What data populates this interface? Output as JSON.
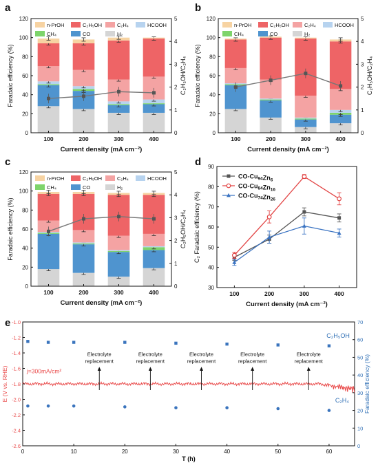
{
  "panel_labels": [
    "a",
    "b",
    "c",
    "d",
    "e"
  ],
  "colors": {
    "n-PrOH": "#f7d3a2",
    "C2H5OH": "#ee6466",
    "C2H4": "#f4a3a3",
    "HCOOH": "#b7d3ef",
    "CH4": "#7ed46b",
    "CO": "#4f94cf",
    "H2": "#d5d5d5",
    "ratio_line": "#777777",
    "axis": "#111111",
    "cu94": "#555555",
    "cu84": "#e24444",
    "cu74": "#3a73c2",
    "potential": "#e94b4b",
    "fe_points": "#3a74bd",
    "right_axis_e": "#2f6fb5"
  },
  "chart_data": [
    {
      "panel": "a",
      "type": "bar",
      "stacked": true,
      "categories": [
        "100",
        "200",
        "300",
        "400"
      ],
      "xlabel": "Current density (mA cm⁻²)",
      "ylabel": "Faradaic efficiency (%)",
      "ylim": [
        0,
        120
      ],
      "yticks": [
        "0",
        "20",
        "40",
        "60",
        "80",
        "100",
        "120"
      ],
      "y2label": "C₂H₅OH/C₂H₄",
      "y2lim": [
        0,
        5
      ],
      "y2ticks": [
        "0",
        "1",
        "2",
        "3",
        "4",
        "5"
      ],
      "legend": [
        "n-PrOH",
        "C₂H₅OH",
        "C₂H₄",
        "HCOOH",
        "CH₄",
        "CO",
        "H₂"
      ],
      "series": [
        {
          "key": "H2",
          "name": "H₂",
          "values": [
            28,
            25,
            21,
            21
          ]
        },
        {
          "key": "CO",
          "name": "CO",
          "values": [
            22,
            19,
            8,
            9
          ]
        },
        {
          "key": "CH4",
          "name": "CH₄",
          "values": [
            1,
            2,
            1,
            1
          ]
        },
        {
          "key": "HCOOH",
          "name": "HCOOH",
          "values": [
            3,
            3,
            3,
            4
          ]
        },
        {
          "key": "C2H4",
          "name": "C₂H₄",
          "values": [
            16,
            17,
            23,
            24
          ]
        },
        {
          "key": "C2H5OH",
          "name": "C₂H₅OH",
          "values": [
            24,
            28,
            41,
            40
          ]
        },
        {
          "key": "n-PrOH",
          "name": "n-PrOH",
          "values": [
            5,
            4,
            3,
            1
          ]
        }
      ],
      "ratio": [
        1.5,
        1.6,
        1.8,
        1.75
      ]
    },
    {
      "panel": "b",
      "type": "bar",
      "stacked": true,
      "categories": [
        "100",
        "200",
        "300",
        "400"
      ],
      "xlabel": "Current density (mA cm⁻²)",
      "ylabel": "Faradaic efficiency (%)",
      "ylim": [
        0,
        120
      ],
      "yticks": [
        "0",
        "20",
        "40",
        "60",
        "80",
        "100",
        "120"
      ],
      "y2label": "C₂H₅OH/C₂H₄",
      "y2lim": [
        0,
        5
      ],
      "y2ticks": [
        "0",
        "1",
        "2",
        "3",
        "4",
        "5"
      ],
      "legend": [
        "n-PrOH",
        "C₂H₅OH",
        "C₂H₄",
        "HCOOH",
        "CH₄",
        "CO",
        "H₂"
      ],
      "series": [
        {
          "key": "H2",
          "name": "H₂",
          "values": [
            25,
            16,
            6,
            10
          ]
        },
        {
          "key": "CO",
          "name": "CO",
          "values": [
            25,
            18,
            8,
            9
          ]
        },
        {
          "key": "CH4",
          "name": "CH₄",
          "values": [
            1,
            1,
            1,
            2
          ]
        },
        {
          "key": "HCOOH",
          "name": "HCOOH",
          "values": [
            1,
            1,
            1,
            3
          ]
        },
        {
          "key": "C2H4",
          "name": "C₂H₄",
          "values": [
            16,
            20,
            23,
            22
          ]
        },
        {
          "key": "C2H5OH",
          "name": "C₂H₅OH",
          "values": [
            30,
            44,
            60,
            50
          ]
        },
        {
          "key": "n-PrOH",
          "name": "n-PrOH",
          "values": [
            1,
            1,
            1,
            2
          ]
        }
      ],
      "ratio": [
        2.0,
        2.3,
        2.6,
        2.05
      ]
    },
    {
      "panel": "c",
      "type": "bar",
      "stacked": true,
      "categories": [
        "100",
        "200",
        "300",
        "400"
      ],
      "xlabel": "Current density (mA cm⁻²)",
      "ylabel": "Faradaic efficiency (%)",
      "ylim": [
        0,
        120
      ],
      "yticks": [
        "0",
        "20",
        "40",
        "60",
        "80",
        "100",
        "120"
      ],
      "y2label": "C₂H₅OH/C₂H₄",
      "y2lim": [
        0,
        5
      ],
      "y2ticks": [
        "0",
        "1",
        "2",
        "3",
        "4",
        "5"
      ],
      "legend": [
        "n-PrOH",
        "C₂H₅OH",
        "C₂H₄",
        "HCOOH",
        "CH₄",
        "CO",
        "H₂"
      ],
      "series": [
        {
          "key": "H2",
          "name": "H₂",
          "values": [
            18,
            14,
            10,
            19
          ]
        },
        {
          "key": "CO",
          "name": "CO",
          "values": [
            37,
            30,
            26,
            19
          ]
        },
        {
          "key": "CH4",
          "name": "CH₄",
          "values": [
            1,
            1,
            1,
            3
          ]
        },
        {
          "key": "HCOOH",
          "name": "HCOOH",
          "values": [
            1,
            1,
            1,
            1
          ]
        },
        {
          "key": "C2H4",
          "name": "C₂H₄",
          "values": [
            12,
            13,
            15,
            13
          ]
        },
        {
          "key": "C2H5OH",
          "name": "C₂H₅OH",
          "values": [
            28,
            38,
            43,
            41
          ]
        },
        {
          "key": "n-PrOH",
          "name": "n-PrOH",
          "values": [
            2,
            2,
            2,
            2
          ]
        }
      ],
      "ratio": [
        2.4,
        2.95,
        3.05,
        2.95
      ]
    },
    {
      "panel": "d",
      "type": "line",
      "x": [
        100,
        200,
        300,
        400
      ],
      "xticks": [
        "100",
        "200",
        "300",
        "400"
      ],
      "xlim": [
        50,
        450
      ],
      "xlabel": "Current density (mA cm⁻²)",
      "ylabel": "C₂ Faradaic efficiency (%)",
      "ylim": [
        30,
        90
      ],
      "yticks": [
        "30",
        "40",
        "50",
        "60",
        "70",
        "80",
        "90"
      ],
      "legend_position": "top-left",
      "series": [
        {
          "key": "cu94",
          "name_base": "CO-Cu",
          "sub1": "94",
          "mid": "Zn",
          "sub2": "6",
          "values": [
            45,
            54,
            67.5,
            64.5
          ],
          "errors": [
            1.5,
            2,
            2,
            2
          ],
          "marker": "square"
        },
        {
          "key": "cu84",
          "name_base": "CO-Cu",
          "sub1": "84",
          "mid": "Zn",
          "sub2": "16",
          "values": [
            46,
            65,
            85,
            74
          ],
          "errors": [
            1.5,
            3,
            1,
            3
          ],
          "marker": "circle"
        },
        {
          "key": "cu74",
          "name_base": "CO-Cu",
          "sub1": "74",
          "mid": "Zn",
          "sub2": "26",
          "values": [
            42.5,
            55,
            60.5,
            57
          ],
          "errors": [
            1.5,
            3,
            4,
            2
          ],
          "marker": "triangle"
        }
      ]
    },
    {
      "panel": "e",
      "type": "line",
      "xlabel": "T (h)",
      "xlim": [
        0,
        65
      ],
      "xticks": [
        "0",
        "10",
        "20",
        "30",
        "40",
        "50",
        "60"
      ],
      "ylabel": "E (V vs. RHE)",
      "ylim": [
        -2.6,
        -1.0
      ],
      "yticks": [
        "-1.0",
        "-1.2",
        "-1.4",
        "-1.6",
        "-1.8",
        "-2.0",
        "-2.2",
        "-2.4",
        "-2.6"
      ],
      "y2label": "Faradaic efficiency (%)",
      "y2lim": [
        0,
        70
      ],
      "y2ticks": [
        "0",
        "10",
        "20",
        "30",
        "40",
        "50",
        "60",
        "70"
      ],
      "annotation_text": "j=300mA/cm²",
      "replacement_line1": "Electrolyte",
      "replacement_line2": "replacement",
      "replacement_times": [
        15,
        25,
        35,
        45,
        56
      ],
      "potential_level": -1.8,
      "c2h5oh_label": "C₂H₅OH",
      "c2h4_label": "C₂H₄",
      "c2h5oh_points": {
        "x": [
          1,
          5,
          10,
          20,
          30,
          40,
          50,
          60
        ],
        "y": [
          59,
          58.5,
          58.5,
          58.5,
          58,
          57.5,
          57,
          56.5
        ]
      },
      "c2h4_points": {
        "x": [
          1,
          5,
          10,
          20,
          30,
          40,
          50,
          60
        ],
        "y": [
          22.5,
          22.5,
          22.5,
          22,
          21.5,
          21.5,
          21,
          20
        ]
      }
    }
  ]
}
